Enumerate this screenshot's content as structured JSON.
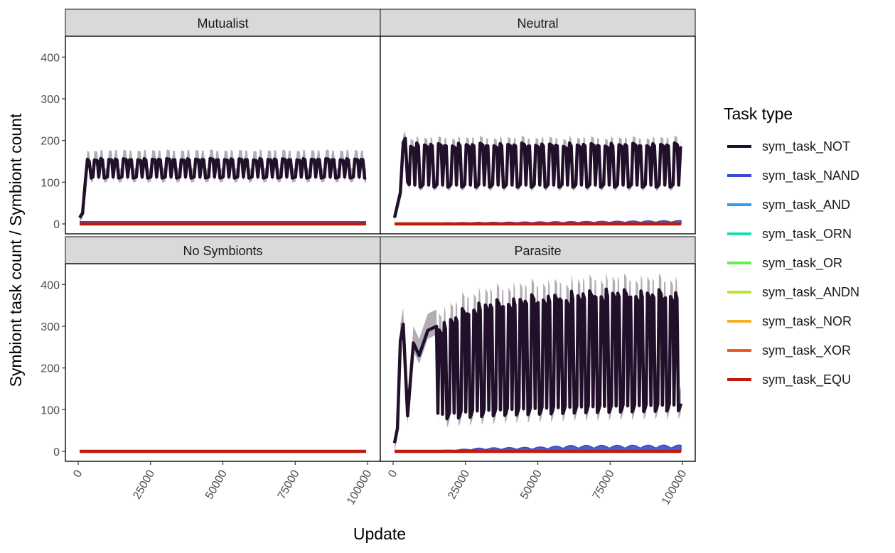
{
  "chart_data": {
    "type": "line",
    "layout": "facet-wrap 2x2 (shared axes)",
    "xlabel": "Update",
    "ylabel": "Symbiont task count / Symbiont count",
    "xlim": [
      0,
      100000
    ],
    "ylim": [
      0,
      450
    ],
    "x_ticks": [
      "0",
      "25000",
      "50000",
      "75000",
      "100000"
    ],
    "y_ticks": [
      "0",
      "100",
      "200",
      "300",
      "400"
    ],
    "legend": {
      "title": "Task type",
      "position": "right",
      "items": [
        {
          "name": "sym_task_NOT",
          "color": "#22102b"
        },
        {
          "name": "sym_task_NAND",
          "color": "#3b4cc8"
        },
        {
          "name": "sym_task_AND",
          "color": "#2f9df2"
        },
        {
          "name": "sym_task_ORN",
          "color": "#1fdbb4"
        },
        {
          "name": "sym_task_OR",
          "color": "#5ff04a"
        },
        {
          "name": "sym_task_ANDN",
          "color": "#b8e62c"
        },
        {
          "name": "sym_task_NOR",
          "color": "#f6ad2c"
        },
        {
          "name": "sym_task_XOR",
          "color": "#ee5a1d"
        },
        {
          "name": "sym_task_EQU",
          "color": "#bf1c0d"
        }
      ]
    },
    "panels": [
      {
        "label": "Mutualist",
        "series": [
          {
            "name": "sym_task_NOT",
            "period": 5000,
            "x_start": 500,
            "x_end": 99500,
            "points": [
              [
                500,
                15
              ],
              [
                1500,
                25
              ],
              [
                2500,
                105
              ],
              [
                3200,
                155
              ],
              [
                3800,
                150
              ],
              [
                4500,
                110
              ]
            ],
            "high": 155,
            "low": 110,
            "ribbon_spread": 22
          },
          {
            "name": "sym_task_NAND",
            "flat": 3
          },
          {
            "name": "sym_task_EQU",
            "flat": 0
          }
        ]
      },
      {
        "label": "Neutral",
        "series": [
          {
            "name": "sym_task_NOT",
            "period": 4800,
            "x_start": 500,
            "x_end": 99500,
            "points": [
              [
                500,
                15
              ],
              [
                2500,
                75
              ],
              [
                3500,
                195
              ],
              [
                4200,
                205
              ],
              [
                5000,
                100
              ]
            ],
            "high": 190,
            "low": 88,
            "ribbon_spread": 18
          },
          {
            "name": "sym_task_NAND",
            "ramp": [
              [
                0,
                0
              ],
              [
                20000,
                3
              ],
              [
                100000,
                8
              ]
            ]
          },
          {
            "name": "sym_task_EQU",
            "flat": 0
          }
        ]
      },
      {
        "label": "No Symbionts",
        "series": [
          {
            "name": "sym_task_EQU",
            "flat": 0
          }
        ]
      },
      {
        "label": "Parasite",
        "series": [
          {
            "name": "sym_task_NOT",
            "period": 4000,
            "x_start": 500,
            "x_end": 99500,
            "points": [
              [
                500,
                20
              ],
              [
                1500,
                55
              ],
              [
                2500,
                265
              ],
              [
                3500,
                305
              ],
              [
                5000,
                85
              ],
              [
                7000,
                260
              ],
              [
                9000,
                230
              ],
              [
                12000,
                290
              ],
              [
                15000,
                300
              ]
            ],
            "high_ramp": [
              [
                15000,
                300
              ],
              [
                25000,
                345
              ],
              [
                40000,
                360
              ],
              [
                70000,
                380
              ],
              [
                100000,
                375
              ]
            ],
            "low_ramp": [
              [
                15000,
                78
              ],
              [
                30000,
                85
              ],
              [
                60000,
                92
              ],
              [
                100000,
                98
              ]
            ],
            "ribbon_spread": 40
          },
          {
            "name": "sym_task_NAND",
            "ramp": [
              [
                0,
                0
              ],
              [
                20000,
                3
              ],
              [
                30000,
                8
              ],
              [
                50000,
                10
              ],
              [
                60000,
                14
              ],
              [
                100000,
                15
              ]
            ]
          },
          {
            "name": "sym_task_EQU",
            "flat": 0
          }
        ]
      }
    ]
  }
}
